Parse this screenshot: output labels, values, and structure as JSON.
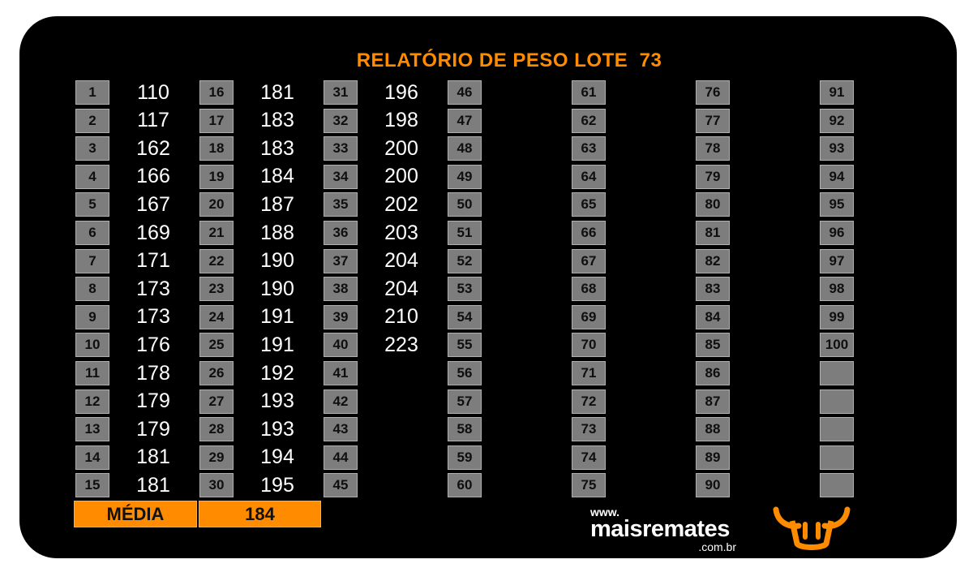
{
  "title": "RELATÓRIO DE PESO LOTE  73",
  "columns": [
    {
      "ids": [
        "1",
        "2",
        "3",
        "4",
        "5",
        "6",
        "7",
        "8",
        "9",
        "10",
        "11",
        "12",
        "13",
        "14",
        "15"
      ],
      "weights": [
        "110",
        "117",
        "162",
        "166",
        "167",
        "169",
        "171",
        "173",
        "173",
        "176",
        "178",
        "179",
        "179",
        "181",
        "181"
      ]
    },
    {
      "ids": [
        "16",
        "17",
        "18",
        "19",
        "20",
        "21",
        "22",
        "23",
        "24",
        "25",
        "26",
        "27",
        "28",
        "29",
        "30"
      ],
      "weights": [
        "181",
        "183",
        "183",
        "184",
        "187",
        "188",
        "190",
        "190",
        "191",
        "191",
        "192",
        "193",
        "193",
        "194",
        "195"
      ]
    },
    {
      "ids": [
        "31",
        "32",
        "33",
        "34",
        "35",
        "36",
        "37",
        "38",
        "39",
        "40",
        "41",
        "42",
        "43",
        "44",
        "45"
      ],
      "weights": [
        "196",
        "198",
        "200",
        "200",
        "202",
        "203",
        "204",
        "204",
        "210",
        "223"
      ]
    },
    {
      "ids": [
        "46",
        "47",
        "48",
        "49",
        "50",
        "51",
        "52",
        "53",
        "54",
        "55",
        "56",
        "57",
        "58",
        "59",
        "60"
      ],
      "weights": []
    },
    {
      "ids": [
        "61",
        "62",
        "63",
        "64",
        "65",
        "66",
        "67",
        "68",
        "69",
        "70",
        "71",
        "72",
        "73",
        "74",
        "75"
      ],
      "weights": []
    },
    {
      "ids": [
        "76",
        "77",
        "78",
        "79",
        "80",
        "81",
        "82",
        "83",
        "84",
        "85",
        "86",
        "87",
        "88",
        "89",
        "90"
      ],
      "weights": []
    },
    {
      "ids": [
        "91",
        "92",
        "93",
        "94",
        "95",
        "96",
        "97",
        "98",
        "99",
        "100",
        "",
        "",
        "",
        "",
        ""
      ],
      "weights": []
    }
  ],
  "media_label": "MÉDIA",
  "media_value": "184",
  "brand": {
    "www": "www.",
    "name": "maisremates",
    "domain": ".com.br",
    "logo_icon": "bull-head-icon"
  },
  "colors": {
    "accent": "#ff8c00",
    "box": "#7d7d7d",
    "background": "#000000"
  }
}
